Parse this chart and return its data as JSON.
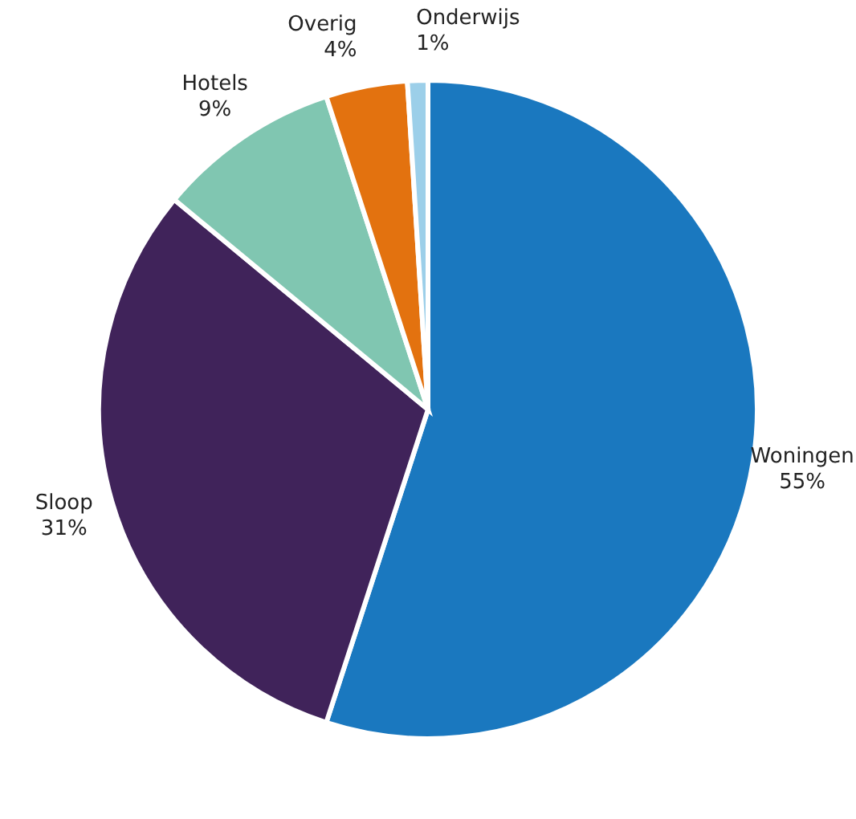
{
  "chart_data": {
    "type": "pie",
    "categories": [
      "Woningen",
      "Sloop",
      "Hotels",
      "Overig",
      "Onderwijs"
    ],
    "values": [
      55,
      31,
      9,
      4,
      1
    ],
    "colors": [
      "#1a78bf",
      "#40235a",
      "#80c6b1",
      "#e3720f",
      "#9ccfe9"
    ],
    "value_labels": [
      "55%",
      "31%",
      "9%",
      "4%",
      "1%"
    ]
  }
}
